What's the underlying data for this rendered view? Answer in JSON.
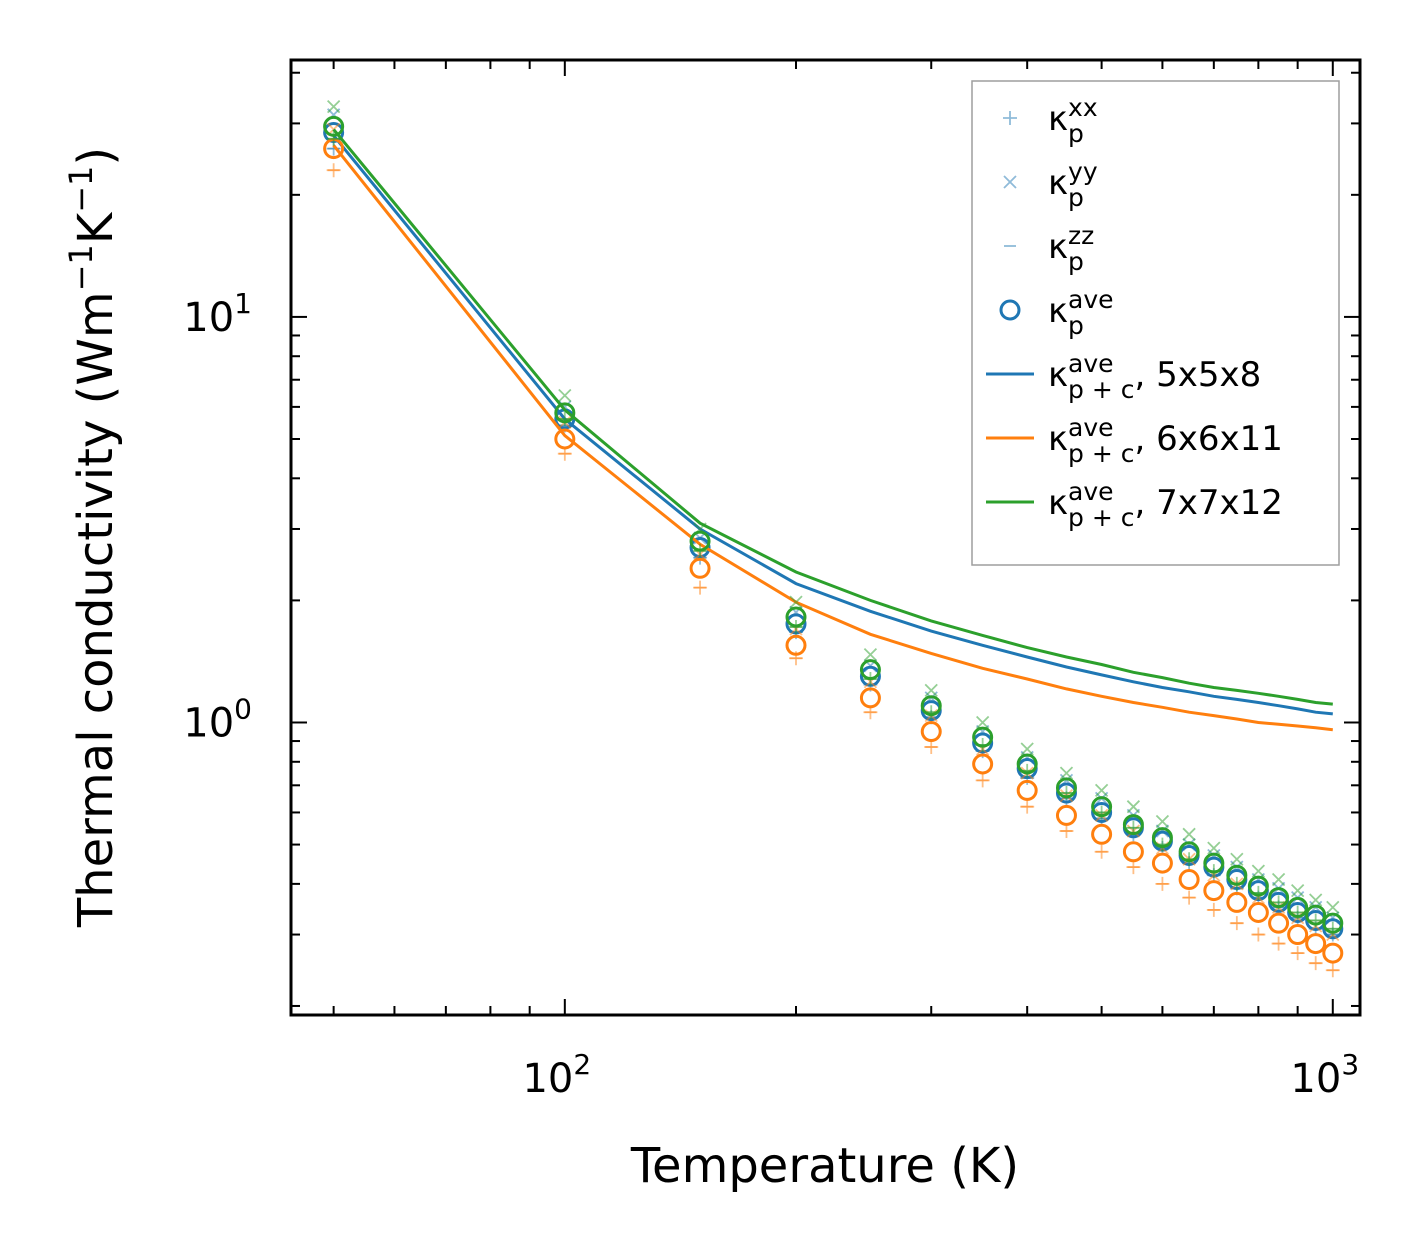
{
  "chart_data": {
    "type": "scatter",
    "title": "",
    "xlabel": "Temperature (K)",
    "ylabel": {
      "text": "Thermal conductivity (Wm",
      "sup1": "−1",
      "mid": "K",
      "sup2": "−1",
      "end": ")"
    },
    "xscale": "log",
    "yscale": "log",
    "xlim": [
      44,
      1085
    ],
    "ylim": [
      0.19,
      43
    ],
    "xticks": [
      {
        "value": 100,
        "base": "10",
        "exp": "2"
      },
      {
        "value": 1000,
        "base": "10",
        "exp": "3"
      }
    ],
    "yticks": [
      {
        "value": 1,
        "base": "10",
        "exp": "0"
      },
      {
        "value": 10,
        "base": "10",
        "exp": "1"
      }
    ],
    "legend_position": "top-right",
    "temperatures": [
      50,
      100,
      150,
      200,
      250,
      300,
      350,
      400,
      450,
      500,
      550,
      600,
      650,
      700,
      750,
      800,
      850,
      900,
      950,
      1000
    ],
    "supercells": [
      {
        "name": "5x5x8",
        "color": "#1f77b4",
        "kappa_xx": [
          26.0,
          5.4,
          2.55,
          1.67,
          1.24,
          1.03,
          0.85,
          0.73,
          0.65,
          0.58,
          0.53,
          0.49,
          0.45,
          0.42,
          0.39,
          0.37,
          0.35,
          0.33,
          0.31,
          0.3
        ],
        "kappa_yy": [
          31.5,
          6.0,
          2.85,
          1.87,
          1.38,
          1.15,
          0.95,
          0.82,
          0.72,
          0.65,
          0.59,
          0.54,
          0.5,
          0.47,
          0.44,
          0.41,
          0.39,
          0.37,
          0.35,
          0.33
        ],
        "kappa_zz": [
          26.0,
          5.4,
          2.55,
          1.67,
          1.24,
          1.03,
          0.85,
          0.73,
          0.65,
          0.58,
          0.53,
          0.49,
          0.45,
          0.42,
          0.39,
          0.37,
          0.35,
          0.33,
          0.31,
          0.3
        ],
        "kappa_ave": [
          28.5,
          5.6,
          2.7,
          1.75,
          1.3,
          1.07,
          0.89,
          0.77,
          0.67,
          0.6,
          0.55,
          0.51,
          0.47,
          0.44,
          0.41,
          0.385,
          0.36,
          0.34,
          0.325,
          0.31
        ],
        "kappa_total": [
          28.0,
          5.6,
          3.0,
          2.2,
          1.88,
          1.68,
          1.55,
          1.45,
          1.37,
          1.31,
          1.26,
          1.22,
          1.19,
          1.16,
          1.14,
          1.12,
          1.1,
          1.08,
          1.06,
          1.05
        ]
      },
      {
        "name": "6x6x11",
        "color": "#ff7f0e",
        "kappa_xx": [
          23.0,
          4.6,
          2.15,
          1.44,
          1.06,
          0.87,
          0.72,
          0.62,
          0.54,
          0.48,
          0.44,
          0.4,
          0.37,
          0.345,
          0.32,
          0.3,
          0.285,
          0.27,
          0.255,
          0.245
        ],
        "kappa_yy": [
          29.0,
          5.5,
          2.6,
          1.7,
          1.26,
          1.04,
          0.86,
          0.75,
          0.66,
          0.59,
          0.54,
          0.49,
          0.46,
          0.42,
          0.4,
          0.37,
          0.35,
          0.33,
          0.315,
          0.3
        ],
        "kappa_zz": [
          23.0,
          4.6,
          2.15,
          1.44,
          1.06,
          0.87,
          0.72,
          0.62,
          0.54,
          0.48,
          0.44,
          0.4,
          0.37,
          0.345,
          0.32,
          0.3,
          0.285,
          0.27,
          0.255,
          0.245
        ],
        "kappa_ave": [
          26.0,
          5.0,
          2.4,
          1.55,
          1.15,
          0.95,
          0.79,
          0.68,
          0.59,
          0.53,
          0.48,
          0.45,
          0.41,
          0.385,
          0.36,
          0.34,
          0.32,
          0.3,
          0.285,
          0.27
        ],
        "kappa_total": [
          26.5,
          5.1,
          2.75,
          1.98,
          1.65,
          1.48,
          1.36,
          1.28,
          1.21,
          1.16,
          1.12,
          1.09,
          1.06,
          1.04,
          1.02,
          1.0,
          0.99,
          0.98,
          0.97,
          0.96
        ]
      },
      {
        "name": "7x7x12",
        "color": "#2ca02c",
        "kappa_xx": [
          27.5,
          5.6,
          2.65,
          1.72,
          1.28,
          1.06,
          0.88,
          0.76,
          0.67,
          0.6,
          0.55,
          0.5,
          0.46,
          0.43,
          0.4,
          0.38,
          0.36,
          0.34,
          0.325,
          0.31
        ],
        "kappa_yy": [
          33.0,
          6.4,
          3.0,
          1.98,
          1.47,
          1.2,
          1.0,
          0.86,
          0.75,
          0.68,
          0.62,
          0.57,
          0.53,
          0.49,
          0.46,
          0.43,
          0.41,
          0.385,
          0.365,
          0.35
        ],
        "kappa_zz": [
          27.5,
          5.6,
          2.65,
          1.72,
          1.28,
          1.06,
          0.88,
          0.76,
          0.67,
          0.6,
          0.55,
          0.5,
          0.46,
          0.43,
          0.4,
          0.38,
          0.36,
          0.34,
          0.325,
          0.31
        ],
        "kappa_ave": [
          29.5,
          5.8,
          2.8,
          1.82,
          1.35,
          1.1,
          0.92,
          0.79,
          0.69,
          0.62,
          0.56,
          0.52,
          0.48,
          0.45,
          0.42,
          0.395,
          0.37,
          0.35,
          0.335,
          0.32
        ],
        "kappa_total": [
          29.0,
          5.9,
          3.1,
          2.35,
          2.0,
          1.78,
          1.64,
          1.53,
          1.45,
          1.39,
          1.33,
          1.29,
          1.25,
          1.22,
          1.2,
          1.18,
          1.16,
          1.14,
          1.12,
          1.11
        ]
      }
    ],
    "legend": [
      {
        "marker": "plus",
        "color": "#1f77b4",
        "label": "κ",
        "sub": "p",
        "sup": "xx",
        "suffix": ""
      },
      {
        "marker": "x",
        "color": "#1f77b4",
        "label": "κ",
        "sub": "p",
        "sup": "yy",
        "suffix": ""
      },
      {
        "marker": "dash",
        "color": "#1f77b4",
        "label": "κ",
        "sub": "p",
        "sup": "zz",
        "suffix": ""
      },
      {
        "marker": "circle",
        "color": "#1f77b4",
        "label": "κ",
        "sub": "p",
        "sup": "ave",
        "suffix": ""
      },
      {
        "marker": "line",
        "color": "#1f77b4",
        "label": "κ",
        "sub": "p + c",
        "sup": "ave",
        "suffix": ", 5x5x8"
      },
      {
        "marker": "line",
        "color": "#ff7f0e",
        "label": "κ",
        "sub": "p + c",
        "sup": "ave",
        "suffix": ", 6x6x11"
      },
      {
        "marker": "line",
        "color": "#2ca02c",
        "label": "κ",
        "sub": "p + c",
        "sup": "ave",
        "suffix": ", 7x7x12"
      }
    ]
  }
}
